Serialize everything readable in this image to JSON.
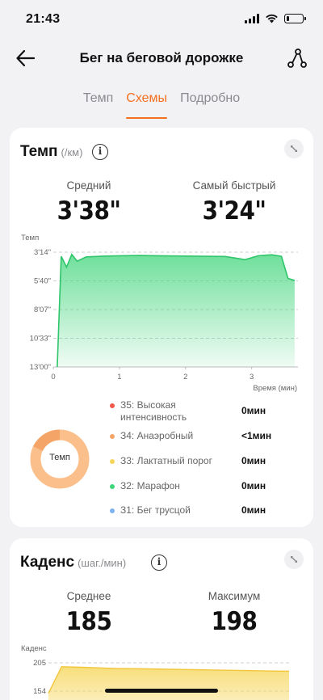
{
  "status": {
    "time": "21:43",
    "battery_level": 0.2
  },
  "nav": {
    "title": "Бег на беговой дорожке"
  },
  "tabs": [
    {
      "label": "Темп",
      "active": false
    },
    {
      "label": "Схемы",
      "active": true
    },
    {
      "label": "Подробно",
      "active": false
    }
  ],
  "pace": {
    "title": "Темп",
    "unit": "(/км)",
    "avg_label": "Средний",
    "avg_value": "3'38\"",
    "fast_label": "Самый быстрый",
    "fast_value": "3'24\"",
    "chart_y_title": "Темп",
    "chart_x_title": "Время (мин)",
    "y_ticks": [
      "3'14\"",
      "5'40\"",
      "8'07\"",
      "10'33\"",
      "13'00\""
    ],
    "x_ticks": [
      "0",
      "1",
      "2",
      "3"
    ],
    "donut_label": "Темп",
    "zones": [
      {
        "name": "З5: Высокая интенсивность",
        "time": "0мин",
        "color": "#f0584a"
      },
      {
        "name": "З4: Анаэробный",
        "time": "<1мин",
        "color": "#f4a466"
      },
      {
        "name": "З3: Лактатный порог",
        "time": "0мин",
        "color": "#f6d65a"
      },
      {
        "name": "З2: Марафон",
        "time": "0мин",
        "color": "#3fd57a"
      },
      {
        "name": "З1: Бег трусцой",
        "time": "0мин",
        "color": "#7fb2f0"
      }
    ]
  },
  "cadence": {
    "title": "Каденс",
    "unit": "(шаг./мин)",
    "avg_label": "Среднее",
    "avg_value": "185",
    "max_label": "Максимум",
    "max_value": "198",
    "chart_y_title": "Каденс",
    "y_ticks": [
      "205",
      "154"
    ]
  },
  "chart_data": [
    {
      "type": "area",
      "ylabel": "Темп",
      "xlabel": "Время (мин)",
      "y_ticks": [
        "3'14\"",
        "5'40\"",
        "8'07\"",
        "10'33\"",
        "13'00\""
      ],
      "x_ticks": [
        0,
        1,
        2,
        3
      ],
      "x": [
        0.06,
        0.12,
        0.2,
        0.28,
        0.36,
        0.5,
        0.8,
        1.0,
        1.3,
        1.6,
        2.0,
        2.3,
        2.6,
        2.9,
        3.1,
        3.3,
        3.45,
        3.55,
        3.65
      ],
      "y_seconds": [
        780,
        215,
        270,
        205,
        240,
        218,
        214,
        212,
        211,
        212,
        214,
        215,
        216,
        232,
        212,
        207,
        215,
        328,
        338
      ],
      "color": "#3fd57a"
    },
    {
      "type": "area",
      "ylabel": "Каденс",
      "y_ticks": [
        205,
        154
      ],
      "x": [
        0,
        0.2,
        0.5,
        1.0,
        1.5,
        2.0,
        2.5,
        3.0,
        3.5,
        3.65
      ],
      "values": [
        150,
        198,
        197,
        195,
        194,
        193,
        192,
        191,
        190,
        190
      ],
      "color": "#f6d65a"
    }
  ]
}
